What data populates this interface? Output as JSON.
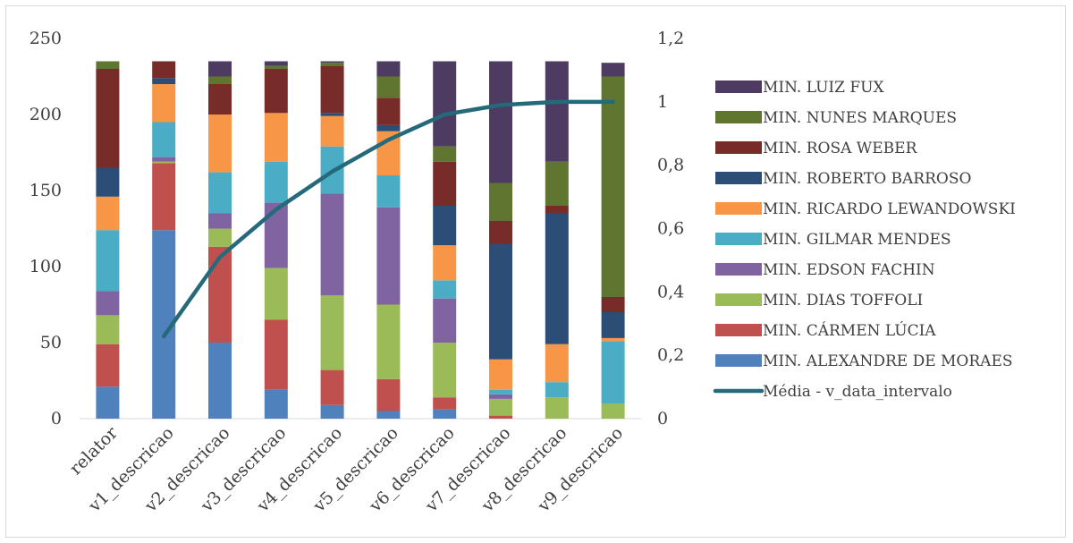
{
  "chart_data": {
    "type": "bar",
    "stacked": true,
    "categories": [
      "relator",
      "v1_descricao",
      "v2_descricao",
      "v3_descricao",
      "v4_descricao",
      "v5_descricao",
      "v6_descricao",
      "v7_descricao",
      "v8_descricao",
      "v9_descricao"
    ],
    "series": [
      {
        "name": "MIN. ALEXANDRE DE MORAES",
        "color": "#4F81BD",
        "values": [
          21,
          124,
          50,
          19,
          9,
          5,
          6,
          0,
          0,
          0
        ]
      },
      {
        "name": "MIN. CÁRMEN LÚCIA",
        "color": "#C0504D",
        "values": [
          28,
          44,
          63,
          46,
          23,
          21,
          8,
          2,
          0,
          0
        ]
      },
      {
        "name": "MIN. DIAS TOFFOLI",
        "color": "#9BBB59",
        "values": [
          19,
          1,
          12,
          34,
          49,
          49,
          36,
          11,
          14,
          10
        ]
      },
      {
        "name": "MIN. EDSON FACHIN",
        "color": "#8064A2",
        "values": [
          16,
          3,
          10,
          43,
          67,
          64,
          29,
          3,
          0,
          0
        ]
      },
      {
        "name": "MIN. GILMAR MENDES",
        "color": "#4BACC6",
        "values": [
          40,
          23,
          27,
          27,
          31,
          21,
          12,
          3,
          10,
          41
        ]
      },
      {
        "name": "MIN. RICARDO LEWANDOWSKI",
        "color": "#F79646",
        "values": [
          22,
          25,
          38,
          32,
          20,
          29,
          23,
          20,
          25,
          2
        ]
      },
      {
        "name": "MIN. ROBERTO BARROSO",
        "color": "#2C4D75",
        "values": [
          19,
          4,
          0,
          0,
          2,
          4,
          26,
          76,
          86,
          17
        ]
      },
      {
        "name": "MIN. ROSA WEBER",
        "color": "#772C2A",
        "values": [
          65,
          11,
          20,
          29,
          31,
          18,
          29,
          15,
          5,
          10
        ]
      },
      {
        "name": "MIN. NUNES MARQUES",
        "color": "#5F7530",
        "values": [
          5,
          0,
          5,
          2,
          2,
          14,
          10,
          25,
          29,
          145
        ]
      },
      {
        "name": "MIN. LUIZ FUX",
        "color": "#4D3B62",
        "values": [
          0,
          0,
          10,
          3,
          1,
          10,
          56,
          80,
          66,
          9
        ]
      }
    ],
    "line": {
      "name": "Média - v_data_intervalo",
      "color": "#256A7A",
      "axis": "secondary",
      "values": [
        null,
        0.26,
        0.51,
        0.66,
        0.78,
        0.88,
        0.96,
        0.99,
        1.0,
        1.0
      ]
    },
    "y_left": {
      "min": 0,
      "max": 250,
      "ticks": [
        "0",
        "50",
        "100",
        "150",
        "200",
        "250"
      ]
    },
    "y_right": {
      "min": 0,
      "max": 1.2,
      "ticks": [
        "0",
        "0,2",
        "0,4",
        "0,6",
        "0,8",
        "1",
        "1,2"
      ]
    },
    "legend_order": [
      "MIN. LUIZ FUX",
      "MIN. NUNES MARQUES",
      "MIN. ROSA WEBER",
      "MIN. ROBERTO BARROSO",
      "MIN. RICARDO LEWANDOWSKI",
      "MIN. GILMAR MENDES",
      "MIN. EDSON FACHIN",
      "MIN. DIAS TOFFOLI",
      "MIN. CÁRMEN LÚCIA",
      "MIN. ALEXANDRE DE MORAES",
      "Média - v_data_intervalo"
    ],
    "legend_position": "right",
    "grid": false
  }
}
